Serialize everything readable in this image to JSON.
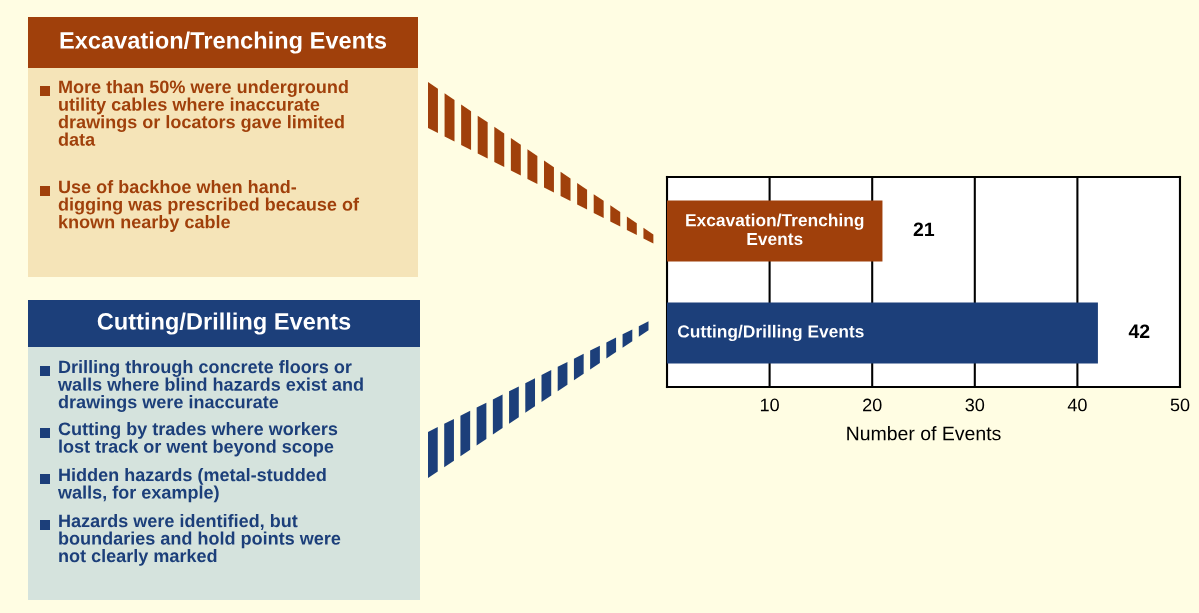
{
  "chart_data": {
    "type": "bar",
    "orientation": "horizontal",
    "categories": [
      "Excavation/Trenching\nEvents",
      "Cutting/Drilling Events"
    ],
    "values": [
      21,
      42
    ],
    "colors": [
      "#a0400b",
      "#1c3f7a"
    ],
    "data_labels": true,
    "xlim": [
      0,
      50
    ],
    "xticks": [
      {
        "value": 0,
        "label": null
      },
      10,
      20,
      30,
      40,
      50
    ],
    "xlabel": "Number of Events",
    "grid": "x",
    "annotations": [
      "Excavation/Trenching Events",
      "More than 50% were underground\nutility cables where inaccurate\ndrawings or locators gave limited\ndata",
      "Use of backhoe when hand-\ndigging was prescribed because of\nknown nearby cable",
      "Cutting/Drilling Events",
      "Drilling through concrete floors or\nwalls where blind hazards exist and\ndrawings were inaccurate",
      "Cutting by trades where workers\nlost track or went beyond scope",
      "Hidden hazards (metal-studded\nwalls, for example)",
      "Hazards were identified, but\nboundaries and hold points were\nnot clearly marked"
    ]
  }
}
